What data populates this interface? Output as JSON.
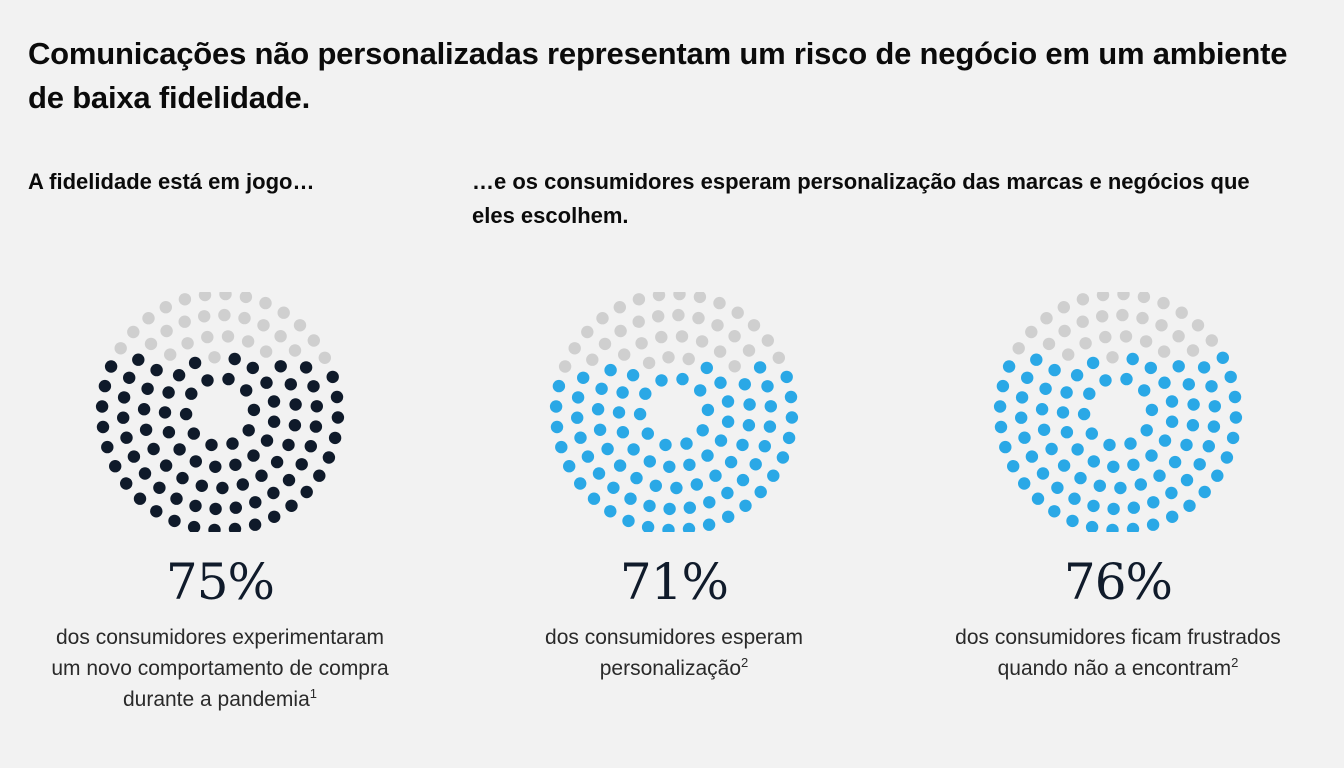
{
  "title": "Comunicações não personalizadas representam um risco de negócio em um ambiente de baixa fidelidade.",
  "subheads": {
    "left": "A fidelidade está em jogo…",
    "right": "…e os consumidores esperam personalização das marcas e negócios que eles escolhem."
  },
  "colors": {
    "background": "#f2f2f2",
    "empty_dot": "#cfcfcf",
    "dark_fill": "#0f1a2a",
    "blue_fill": "#2aa8e6"
  },
  "chart_data": [
    {
      "type": "dot-fill",
      "value": 75,
      "label": "75%",
      "description": "dos consumidores experimentaram um novo comportamento de compra durante a pandemia",
      "footnote": "1",
      "fill_color": "#0f1a2a"
    },
    {
      "type": "dot-fill",
      "value": 71,
      "label": "71%",
      "description": "dos consumidores esperam personalização",
      "footnote": "2",
      "fill_color": "#2aa8e6"
    },
    {
      "type": "dot-fill",
      "value": 76,
      "label": "76%",
      "description": "dos consumidores ficam frustrados quando não a encontram",
      "footnote": "2",
      "fill_color": "#2aa8e6"
    }
  ]
}
